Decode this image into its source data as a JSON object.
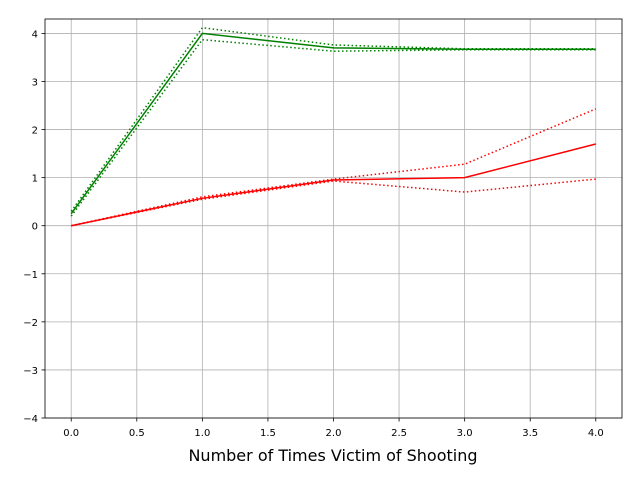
{
  "chart_data": {
    "type": "line",
    "x_label": "Number of Times Victim of Shooting",
    "x": [
      0,
      1,
      2,
      3,
      4
    ],
    "series": [
      {
        "color": "#008000",
        "style": "solid",
        "values": [
          0.25,
          4.0,
          3.7,
          3.67,
          3.67
        ]
      },
      {
        "color": "#008000",
        "style": "dotted",
        "values": [
          0.3,
          4.12,
          3.76,
          3.68,
          3.68
        ]
      },
      {
        "color": "#008000",
        "style": "dotted",
        "values": [
          0.2,
          3.87,
          3.63,
          3.66,
          3.66
        ]
      },
      {
        "color": "#ff0000",
        "style": "solid",
        "values": [
          0,
          0.57,
          0.95,
          1.0,
          1.7
        ]
      },
      {
        "color": "#ff0000",
        "style": "dotted",
        "values": [
          0,
          0.6,
          0.97,
          1.28,
          2.43
        ]
      },
      {
        "color": "#ff0000",
        "style": "dotted",
        "values": [
          0,
          0.55,
          0.93,
          0.7,
          0.97
        ]
      }
    ],
    "xlim": [
      -0.2,
      4.2
    ],
    "ylim": [
      -4,
      4.3
    ],
    "xticks": [
      {
        "value": 0,
        "label": "0.0"
      },
      {
        "value": 0.5,
        "label": "0.5"
      },
      {
        "value": 1,
        "label": "1.0"
      },
      {
        "value": 1.5,
        "label": "1.5"
      },
      {
        "value": 2,
        "label": "2.0"
      },
      {
        "value": 2.5,
        "label": "2.5"
      },
      {
        "value": 3,
        "label": "3.0"
      },
      {
        "value": 3.5,
        "label": "3.5"
      },
      {
        "value": 4,
        "label": "4.0"
      }
    ],
    "yticks": [
      {
        "value": -4,
        "label": "−4"
      },
      {
        "value": -3,
        "label": "−3"
      },
      {
        "value": -2,
        "label": "−2"
      },
      {
        "value": -1,
        "label": "−1"
      },
      0,
      1,
      2,
      3,
      4
    ],
    "grid": true
  }
}
